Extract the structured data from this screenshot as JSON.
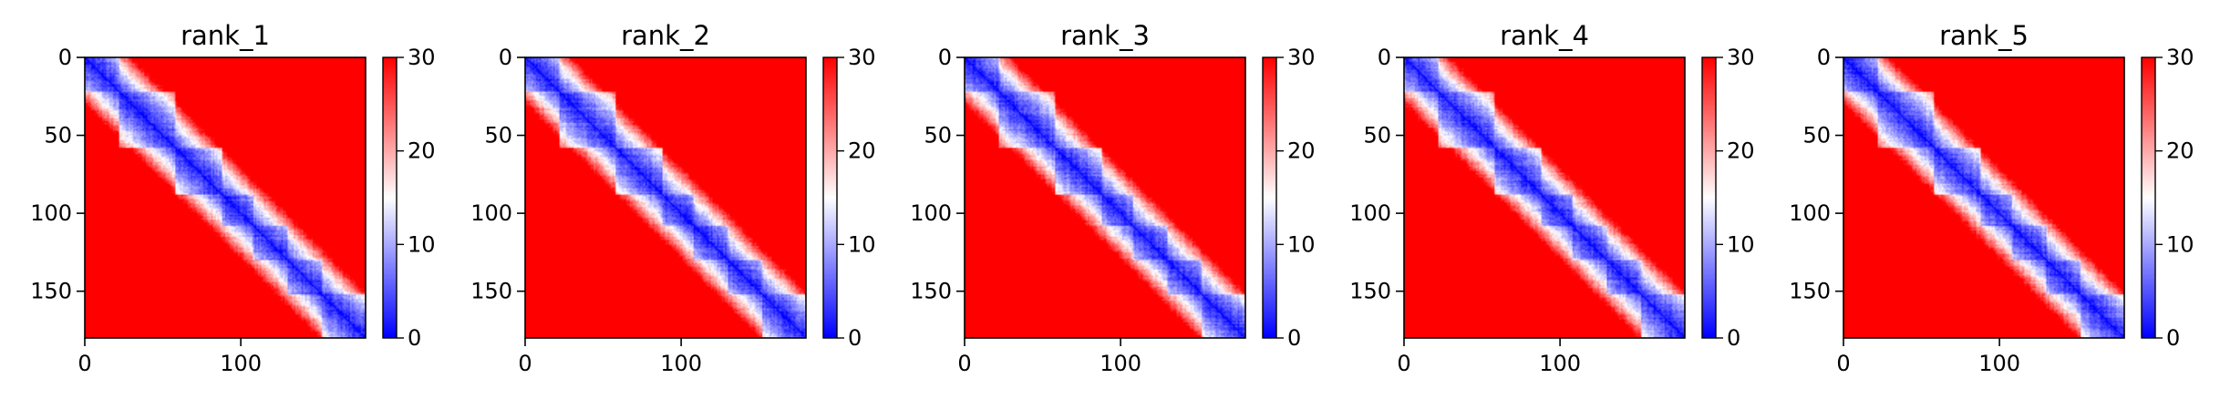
{
  "chart_data": [
    {
      "type": "heatmap",
      "title": "rank_1",
      "n": 180,
      "xticks": [
        0,
        100
      ],
      "yticks": [
        0,
        50,
        100,
        150
      ],
      "colorbar": {
        "min": 0,
        "max": 30,
        "ticks": [
          0,
          10,
          20,
          30
        ]
      },
      "blocks": [
        [
          0,
          22
        ],
        [
          22,
          58
        ],
        [
          58,
          88
        ],
        [
          88,
          108
        ],
        [
          108,
          130
        ],
        [
          130,
          152
        ],
        [
          152,
          180
        ]
      ],
      "seed": 11
    },
    {
      "type": "heatmap",
      "title": "rank_2",
      "n": 180,
      "xticks": [
        0,
        100
      ],
      "yticks": [
        0,
        50,
        100,
        150
      ],
      "colorbar": {
        "min": 0,
        "max": 30,
        "ticks": [
          0,
          10,
          20,
          30
        ]
      },
      "blocks": [
        [
          0,
          22
        ],
        [
          22,
          58
        ],
        [
          58,
          88
        ],
        [
          88,
          108
        ],
        [
          108,
          130
        ],
        [
          130,
          152
        ],
        [
          152,
          180
        ]
      ],
      "seed": 23
    },
    {
      "type": "heatmap",
      "title": "rank_3",
      "n": 180,
      "xticks": [
        0,
        100
      ],
      "yticks": [
        0,
        50,
        100,
        150
      ],
      "colorbar": {
        "min": 0,
        "max": 30,
        "ticks": [
          0,
          10,
          20,
          30
        ]
      },
      "blocks": [
        [
          0,
          22
        ],
        [
          22,
          58
        ],
        [
          58,
          88
        ],
        [
          88,
          108
        ],
        [
          108,
          130
        ],
        [
          130,
          152
        ],
        [
          152,
          180
        ]
      ],
      "seed": 37
    },
    {
      "type": "heatmap",
      "title": "rank_4",
      "n": 180,
      "xticks": [
        0,
        100
      ],
      "yticks": [
        0,
        50,
        100,
        150
      ],
      "colorbar": {
        "min": 0,
        "max": 30,
        "ticks": [
          0,
          10,
          20,
          30
        ]
      },
      "blocks": [
        [
          0,
          22
        ],
        [
          22,
          58
        ],
        [
          58,
          88
        ],
        [
          88,
          108
        ],
        [
          108,
          130
        ],
        [
          130,
          152
        ],
        [
          152,
          180
        ]
      ],
      "seed": 41
    },
    {
      "type": "heatmap",
      "title": "rank_5",
      "n": 180,
      "xticks": [
        0,
        100
      ],
      "yticks": [
        0,
        50,
        100,
        150
      ],
      "colorbar": {
        "min": 0,
        "max": 30,
        "ticks": [
          0,
          10,
          20,
          30
        ]
      },
      "blocks": [
        [
          0,
          22
        ],
        [
          22,
          58
        ],
        [
          58,
          88
        ],
        [
          88,
          108
        ],
        [
          108,
          130
        ],
        [
          130,
          152
        ],
        [
          152,
          180
        ]
      ],
      "seed": 53
    }
  ],
  "colors": {
    "low": "#0000ff",
    "mid": "#ffffff",
    "high": "#ff0000"
  }
}
